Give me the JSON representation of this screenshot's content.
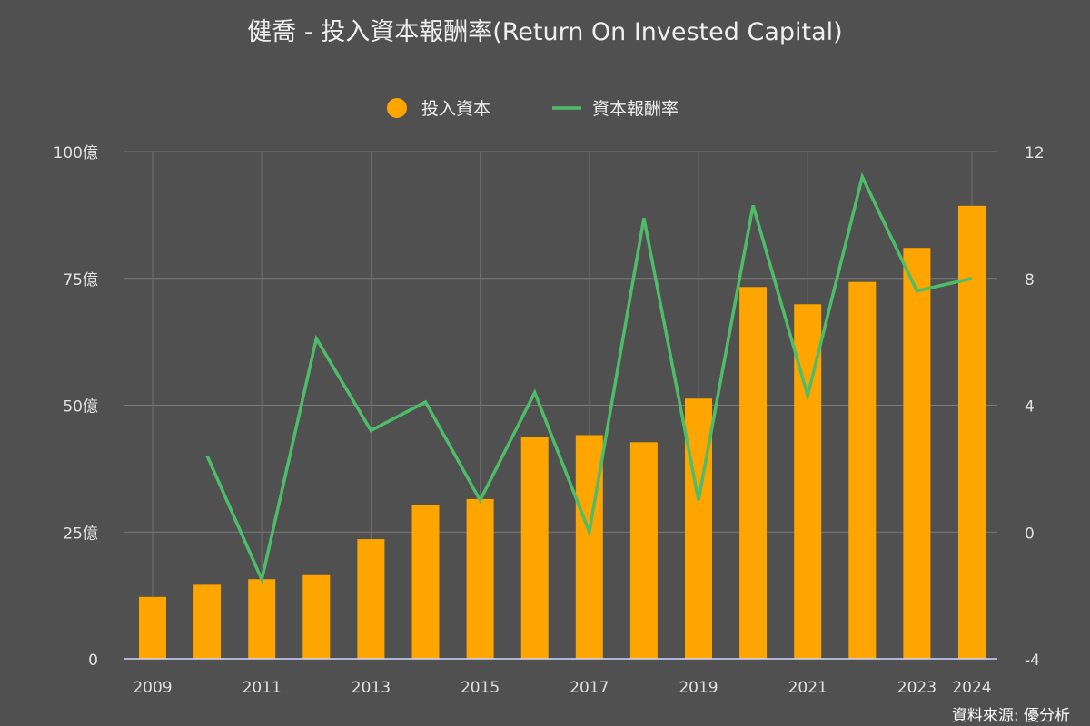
{
  "chart_data": {
    "type": "bar",
    "title": "健喬 - 投入資本報酬率(Return On Invested Capital)",
    "categories": [
      "2009",
      "2010",
      "2011",
      "2012",
      "2013",
      "2014",
      "2015",
      "2016",
      "2017",
      "2018",
      "2019",
      "2020",
      "2021",
      "2022",
      "2023",
      "2024"
    ],
    "x_tick_labels": [
      "2009",
      "2011",
      "2013",
      "2015",
      "2017",
      "2019",
      "2021",
      "2023",
      "2024"
    ],
    "series": [
      {
        "name": "投入資本",
        "type": "bar",
        "axis": "left",
        "color": "#FFA500",
        "values": [
          12.2,
          14.6,
          15.7,
          16.5,
          23.6,
          30.4,
          31.5,
          43.7,
          44.1,
          42.7,
          51.3,
          73.3,
          69.9,
          74.3,
          81.0,
          89.3
        ]
      },
      {
        "name": "資本報酬率",
        "type": "line",
        "axis": "right",
        "color": "#4DBD6A",
        "values": [
          null,
          2.4,
          -1.5,
          6.1,
          3.2,
          4.1,
          1.0,
          4.4,
          0.0,
          9.9,
          1.0,
          10.3,
          4.3,
          11.2,
          7.6,
          8.0
        ]
      }
    ],
    "left_axis": {
      "ylim": [
        0,
        100
      ],
      "ticks": [
        0,
        25,
        50,
        75,
        100
      ],
      "tick_labels": [
        "0",
        "25億",
        "50億",
        "75億",
        "100億"
      ]
    },
    "right_axis": {
      "ylim": [
        -4,
        12
      ],
      "ticks": [
        -4,
        0,
        4,
        8,
        12
      ],
      "tick_labels": [
        "-4",
        "0",
        "4",
        "8",
        "12"
      ]
    },
    "grid": true,
    "legend_position": "top-center",
    "source": "資料來源: 優分析"
  }
}
